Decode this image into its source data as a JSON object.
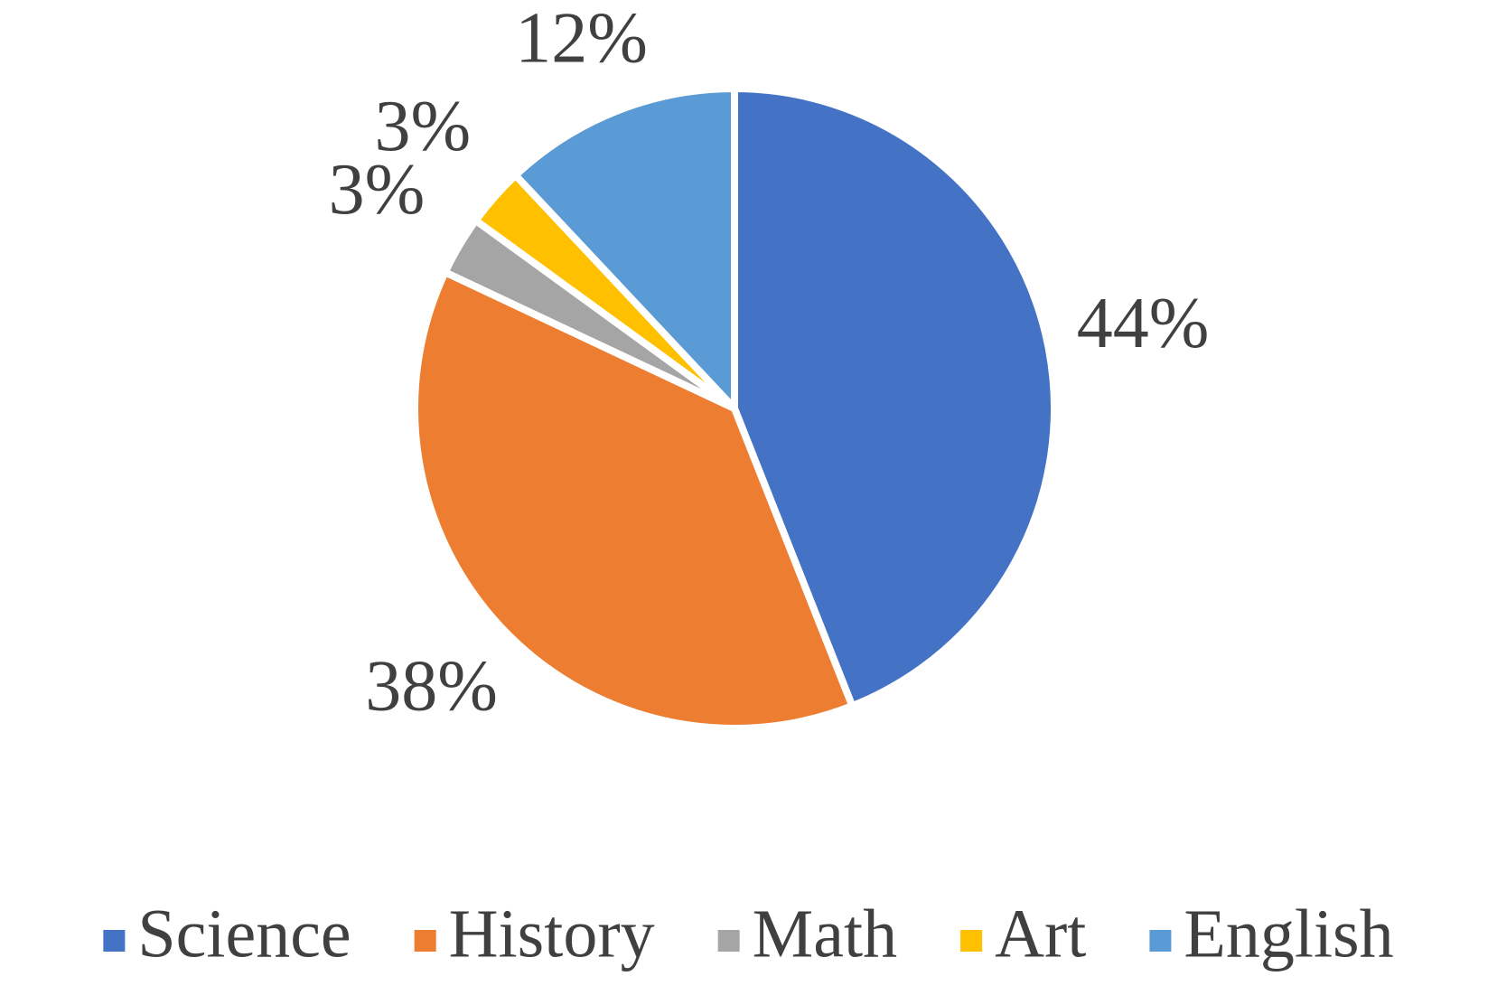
{
  "chart_data": {
    "type": "pie",
    "categories": [
      "Science",
      "History",
      "Math",
      "Art",
      "English"
    ],
    "values": [
      44,
      38,
      3,
      3,
      12
    ],
    "value_labels": [
      "44%",
      "38%",
      "3%",
      "3%",
      "12%"
    ],
    "colors": [
      "#4472c4",
      "#ed7d31",
      "#a5a5a5",
      "#ffc000",
      "#5b9bd5"
    ],
    "legend": "bottom"
  }
}
